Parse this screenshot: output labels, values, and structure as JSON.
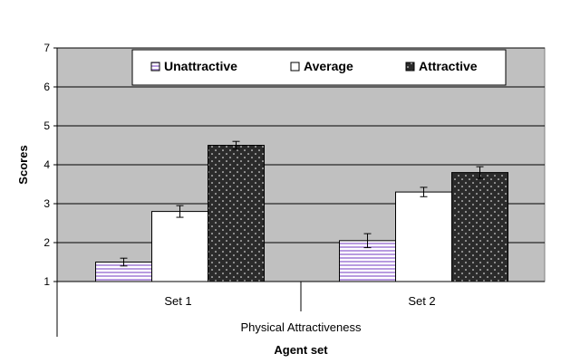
{
  "chart_data": {
    "type": "bar",
    "categories": [
      "Set 1",
      "Set 2"
    ],
    "group_label": "Physical Attractiveness",
    "xlabel": "Agent set",
    "ylabel": "Scores",
    "ylim": [
      1,
      7
    ],
    "yticks": [
      "1",
      "2",
      "3",
      "4",
      "5",
      "6",
      "7"
    ],
    "grid": true,
    "legend_position": "top-center",
    "series": [
      {
        "name": "Unattractive",
        "values": [
          1.5,
          2.05
        ],
        "errors": [
          0.1,
          0.18
        ],
        "color": "#b89be0",
        "pattern": "horizontal-stripes"
      },
      {
        "name": "Average",
        "values": [
          2.8,
          3.3
        ],
        "errors": [
          0.15,
          0.12
        ],
        "color": "#ffffff",
        "pattern": "solid"
      },
      {
        "name": "Attractive",
        "values": [
          4.5,
          3.8
        ],
        "errors": [
          0.1,
          0.15
        ],
        "color": "#2b2b2b",
        "pattern": "dots"
      }
    ],
    "plot_background": "#c0c0c0"
  }
}
